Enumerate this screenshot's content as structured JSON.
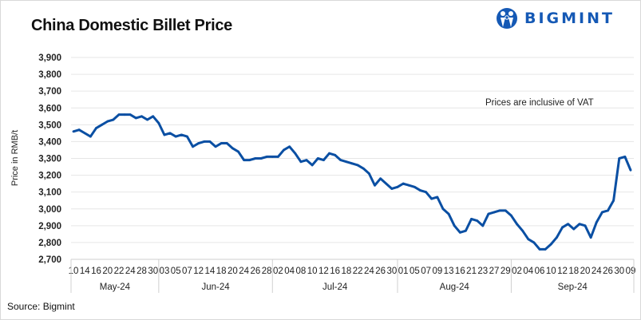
{
  "header": {
    "title": "China Domestic Billet Price",
    "logo_text": "BIGMINT"
  },
  "footer": {
    "source": "Source: Bigmint"
  },
  "chart_data": {
    "type": "line",
    "title": "China Domestic Billet Price",
    "ylabel": "Price in RMB/t",
    "xlabel": "",
    "ylim": [
      2700,
      3900
    ],
    "yticks": [
      2700,
      2800,
      2900,
      3000,
      3100,
      3200,
      3300,
      3400,
      3500,
      3600,
      3700,
      3800,
      3900
    ],
    "grid": true,
    "annotation": "Prices are inclusive of VAT",
    "color": "#0a4fa3",
    "months": [
      {
        "label": "May-24",
        "days": [
          "10",
          "14",
          "16",
          "20",
          "22",
          "24",
          "28",
          "30"
        ]
      },
      {
        "label": "Jun-24",
        "days": [
          "03",
          "05",
          "07",
          "12",
          "14",
          "18",
          "20",
          "24",
          "26",
          "28"
        ]
      },
      {
        "label": "Jul-24",
        "days": [
          "02",
          "04",
          "08",
          "10",
          "12",
          "16",
          "18",
          "22",
          "24",
          "26",
          "30"
        ]
      },
      {
        "label": "Aug-24",
        "days": [
          "01",
          "05",
          "07",
          "09",
          "13",
          "16",
          "21",
          "23",
          "27",
          "29"
        ]
      },
      {
        "label": "Sep-24",
        "days": [
          "02",
          "04",
          "06",
          "10",
          "12",
          "18",
          "20",
          "24",
          "26",
          "30",
          "09"
        ]
      }
    ],
    "values": [
      3460,
      3470,
      3450,
      3430,
      3480,
      3500,
      3520,
      3530,
      3560,
      3560,
      3560,
      3540,
      3550,
      3530,
      3550,
      3510,
      3440,
      3450,
      3430,
      3440,
      3430,
      3370,
      3390,
      3400,
      3400,
      3370,
      3390,
      3390,
      3360,
      3340,
      3290,
      3290,
      3300,
      3300,
      3310,
      3310,
      3310,
      3350,
      3370,
      3330,
      3280,
      3290,
      3260,
      3300,
      3290,
      3330,
      3320,
      3290,
      3280,
      3270,
      3260,
      3240,
      3210,
      3140,
      3180,
      3150,
      3120,
      3130,
      3150,
      3140,
      3130,
      3110,
      3100,
      3060,
      3070,
      3000,
      2970,
      2900,
      2860,
      2870,
      2940,
      2930,
      2900,
      2970,
      2980,
      2990,
      2990,
      2960,
      2910,
      2870,
      2820,
      2800,
      2760,
      2760,
      2790,
      2830,
      2890,
      2910,
      2880,
      2910,
      2900,
      2830,
      2920,
      2980,
      2990,
      3050,
      3300,
      3310,
      3230
    ]
  }
}
